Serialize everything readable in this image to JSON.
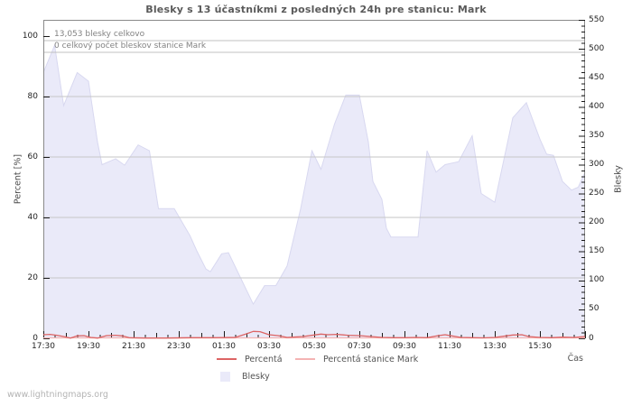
{
  "title": "Blesky s 13 účastníkmi z posledných 24h pre stanicu: Mark",
  "annotations": {
    "total_label": "13,053 blesky celkovo",
    "station_label": "0 celkový počet bleskov stanice Mark"
  },
  "watermark": "www.lightningmaps.org",
  "legend": {
    "percenta": "Percentá",
    "percenta_stanice": "Percentá stanice Mark",
    "blesky": "Blesky"
  },
  "colors": {
    "percenta_line": "#dd6464",
    "percenta_stanice_line": "#f4b4b4",
    "blesky_area": "#eaeaf9",
    "blesky_area_edge": "#d8d8f0",
    "grid": "#c6c6c6",
    "frame": "#8a8a8a",
    "tick": "#1a1a1a",
    "annotation_rule": "#c0c0c0"
  },
  "chart_data": {
    "type": "area",
    "title": "Blesky s 13 účastníkmi z posledných 24h pre stanicu: Mark",
    "xlabel": "Čas",
    "ylabel_left": "Percent [%]",
    "ylabel_right": "Blesky",
    "totals": {
      "blesky_celkovo": 13053,
      "blesky_stanice_mark": 0
    },
    "x_axis": {
      "hours_span": 24,
      "tick_hours": [
        0,
        2,
        4,
        6,
        8,
        10,
        12,
        14,
        16,
        18,
        20,
        22
      ],
      "tick_labels": [
        "17:30",
        "19:30",
        "21:30",
        "23:30",
        "01:30",
        "03:30",
        "05:30",
        "07:30",
        "09:30",
        "11:30",
        "13:30",
        "15:30"
      ],
      "minor_step_hours": 0.5
    },
    "y_left": {
      "label": "Percent [%]",
      "range": [
        0,
        105.4
      ],
      "ticks": [
        0,
        20,
        40,
        60,
        80,
        100
      ],
      "gridlines": [
        20,
        40,
        60,
        80
      ]
    },
    "y_right": {
      "label": "Blesky",
      "range": [
        0,
        550
      ],
      "ticks": [
        0,
        50,
        100,
        150,
        200,
        250,
        300,
        350,
        400,
        450,
        500,
        550
      ],
      "minor_step": 10
    },
    "series": [
      {
        "name": "Blesky",
        "type": "area",
        "axis": "right",
        "x": [
          0,
          0.5,
          0.9,
          1.5,
          2.0,
          2.4,
          2.6,
          3.2,
          3.6,
          4.2,
          4.7,
          5.1,
          5.8,
          6.1,
          6.5,
          6.8,
          7.2,
          7.4,
          7.9,
          8.2,
          9.3,
          9.8,
          10.3,
          10.8,
          11.4,
          11.9,
          12.3,
          12.9,
          13.4,
          14.0,
          14.4,
          14.6,
          15.0,
          15.2,
          15.4,
          16.6,
          17.0,
          17.4,
          17.8,
          18.4,
          19.0,
          19.4,
          20.0,
          20.8,
          21.4,
          22.0,
          22.3,
          22.6,
          23.0,
          23.4,
          23.7,
          24.0
        ],
        "y": [
          459,
          506,
          402,
          459,
          444,
          339,
          300,
          310,
          299,
          334,
          324,
          224,
          224,
          204,
          177,
          151,
          120,
          115,
          146,
          148,
          59,
          91,
          91,
          125,
          224,
          324,
          292,
          370,
          420,
          420,
          339,
          271,
          240,
          190,
          175,
          175,
          324,
          287,
          300,
          305,
          350,
          250,
          235,
          381,
          407,
          344,
          318,
          316,
          271,
          256,
          261,
          287
        ]
      },
      {
        "name": "Percentá",
        "type": "line",
        "axis": "left",
        "x": [
          0,
          0.3,
          0.6,
          0.9,
          1.2,
          1.5,
          1.8,
          2.1,
          2.4,
          2.8,
          3.2,
          3.5,
          3.8,
          4.5,
          5.5,
          6.5,
          7.5,
          8.5,
          9.0,
          9.3,
          9.6,
          10.0,
          10.4,
          10.8,
          11.5,
          12.0,
          12.3,
          12.6,
          13.0,
          13.5,
          14.0,
          14.5,
          15.0,
          15.5,
          16.0,
          16.5,
          17.0,
          17.5,
          17.8,
          18.1,
          18.5,
          19.0,
          19.5,
          20.0,
          20.5,
          20.8,
          21.2,
          21.5,
          22.0,
          22.5,
          23.0,
          23.5,
          24.0
        ],
        "y": [
          1.2,
          1.3,
          1.0,
          0.6,
          0.1,
          0.8,
          0.9,
          0.3,
          0.1,
          0.9,
          1.0,
          0.8,
          0.2,
          0.1,
          0.1,
          0.2,
          0.2,
          0.3,
          1.5,
          2.3,
          2.2,
          1.2,
          0.9,
          0.3,
          0.6,
          1.1,
          1.4,
          1.2,
          1.3,
          1.0,
          0.9,
          0.6,
          0.3,
          0.2,
          0.2,
          0.3,
          0.2,
          0.9,
          1.2,
          0.8,
          0.3,
          0.2,
          0.15,
          0.3,
          0.8,
          1.1,
          1.2,
          0.6,
          0.3,
          0.2,
          0.4,
          0.3,
          0.6
        ]
      },
      {
        "name": "Percentá stanice Mark",
        "type": "line",
        "axis": "left",
        "x": [
          0,
          24
        ],
        "y": [
          0,
          0
        ]
      }
    ]
  }
}
